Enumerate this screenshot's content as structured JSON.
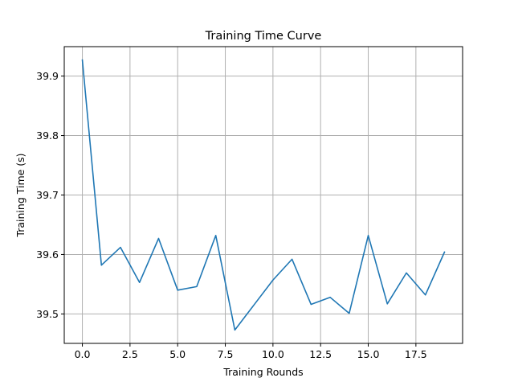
{
  "chart_data": {
    "type": "line",
    "title": "Training Time Curve",
    "xlabel": "Training Rounds",
    "ylabel": "Training Time (s)",
    "xlim": [
      -0.95,
      19.95
    ],
    "ylim": [
      39.4505,
      39.9495
    ],
    "grid": true,
    "x_ticks": [
      0.0,
      2.5,
      5.0,
      7.5,
      10.0,
      12.5,
      15.0,
      17.5
    ],
    "x_tick_labels": [
      "0.0",
      "2.5",
      "5.0",
      "7.5",
      "10.0",
      "12.5",
      "15.0",
      "17.5"
    ],
    "y_ticks": [
      39.5,
      39.6,
      39.7,
      39.8,
      39.9
    ],
    "y_tick_labels": [
      "39.5",
      "39.6",
      "39.7",
      "39.8",
      "39.9"
    ],
    "x": [
      0,
      1,
      2,
      3,
      4,
      5,
      6,
      7,
      8,
      9,
      10,
      11,
      12,
      13,
      14,
      15,
      16,
      17,
      18,
      19
    ],
    "series": [
      {
        "color": "#1f77b4",
        "values": [
          39.927,
          39.582,
          39.612,
          39.553,
          39.627,
          39.54,
          39.546,
          39.632,
          39.473,
          39.515,
          39.557,
          39.592,
          39.516,
          39.528,
          39.501,
          39.632,
          39.517,
          39.569,
          39.532,
          39.604
        ]
      }
    ]
  }
}
